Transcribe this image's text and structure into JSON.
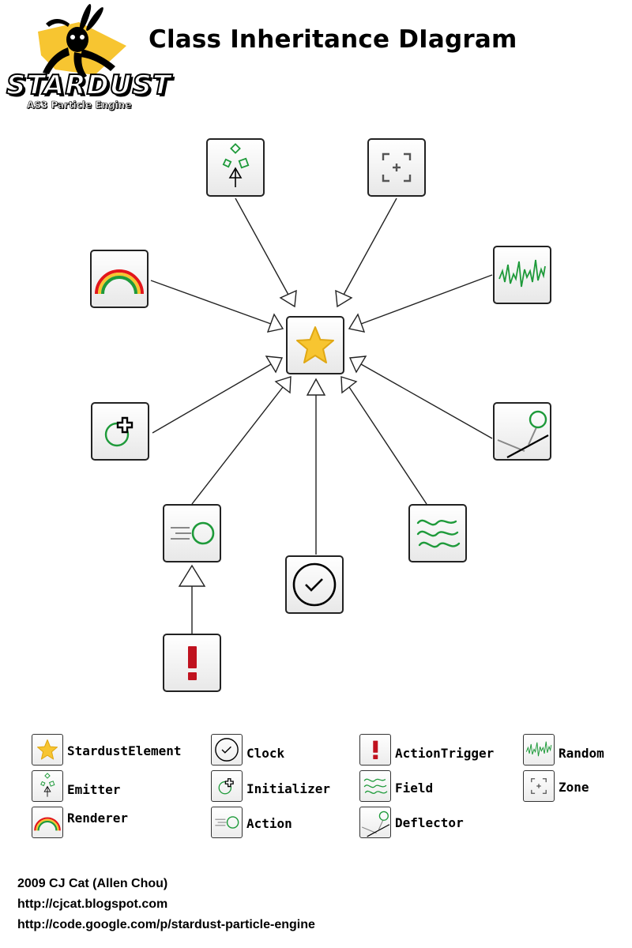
{
  "logo": {
    "title": "STARDUST",
    "subtitle": "AS3 Particle Engine",
    "accent_color": "#f7c531"
  },
  "title": "Class Inheritance DIagram",
  "diagram": {
    "root": {
      "name": "StardustElement",
      "icon": "star-icon"
    },
    "children": [
      {
        "name": "Emitter",
        "icon": "emitter-icon",
        "parent": "StardustElement"
      },
      {
        "name": "Zone",
        "icon": "zone-icon",
        "parent": "StardustElement"
      },
      {
        "name": "Renderer",
        "icon": "rainbow-icon",
        "parent": "StardustElement"
      },
      {
        "name": "Random",
        "icon": "random-wave-icon",
        "parent": "StardustElement"
      },
      {
        "name": "Initializer",
        "icon": "initializer-icon",
        "parent": "StardustElement"
      },
      {
        "name": "Deflector",
        "icon": "deflector-icon",
        "parent": "StardustElement"
      },
      {
        "name": "Action",
        "icon": "action-icon",
        "parent": "StardustElement"
      },
      {
        "name": "Clock",
        "icon": "clock-icon",
        "parent": "StardustElement"
      },
      {
        "name": "Field",
        "icon": "field-icon",
        "parent": "StardustElement"
      },
      {
        "name": "ActionTrigger",
        "icon": "exclamation-icon",
        "parent": "Action"
      }
    ],
    "colors": {
      "green": "#1e9a3a",
      "red": "#c0121f",
      "star": "#f7c531"
    }
  },
  "legend": {
    "items": [
      {
        "label": "StardustElement",
        "icon": "star-icon"
      },
      {
        "label": "Emitter",
        "icon": "emitter-icon"
      },
      {
        "label": "Renderer",
        "icon": "rainbow-icon"
      },
      {
        "label": "Clock",
        "icon": "clock-icon"
      },
      {
        "label": "Initializer",
        "icon": "initializer-icon"
      },
      {
        "label": "Action",
        "icon": "action-icon"
      },
      {
        "label": "ActionTrigger",
        "icon": "exclamation-icon"
      },
      {
        "label": "Field",
        "icon": "field-icon"
      },
      {
        "label": "Deflector",
        "icon": "deflector-icon"
      },
      {
        "label": "Random",
        "icon": "random-wave-icon"
      },
      {
        "label": "Zone",
        "icon": "zone-icon"
      }
    ]
  },
  "footer": {
    "credit": "2009 CJ Cat (Allen Chou)",
    "blog": "http://cjcat.blogspot.com",
    "project": "http://code.google.com/p/stardust-particle-engine"
  }
}
